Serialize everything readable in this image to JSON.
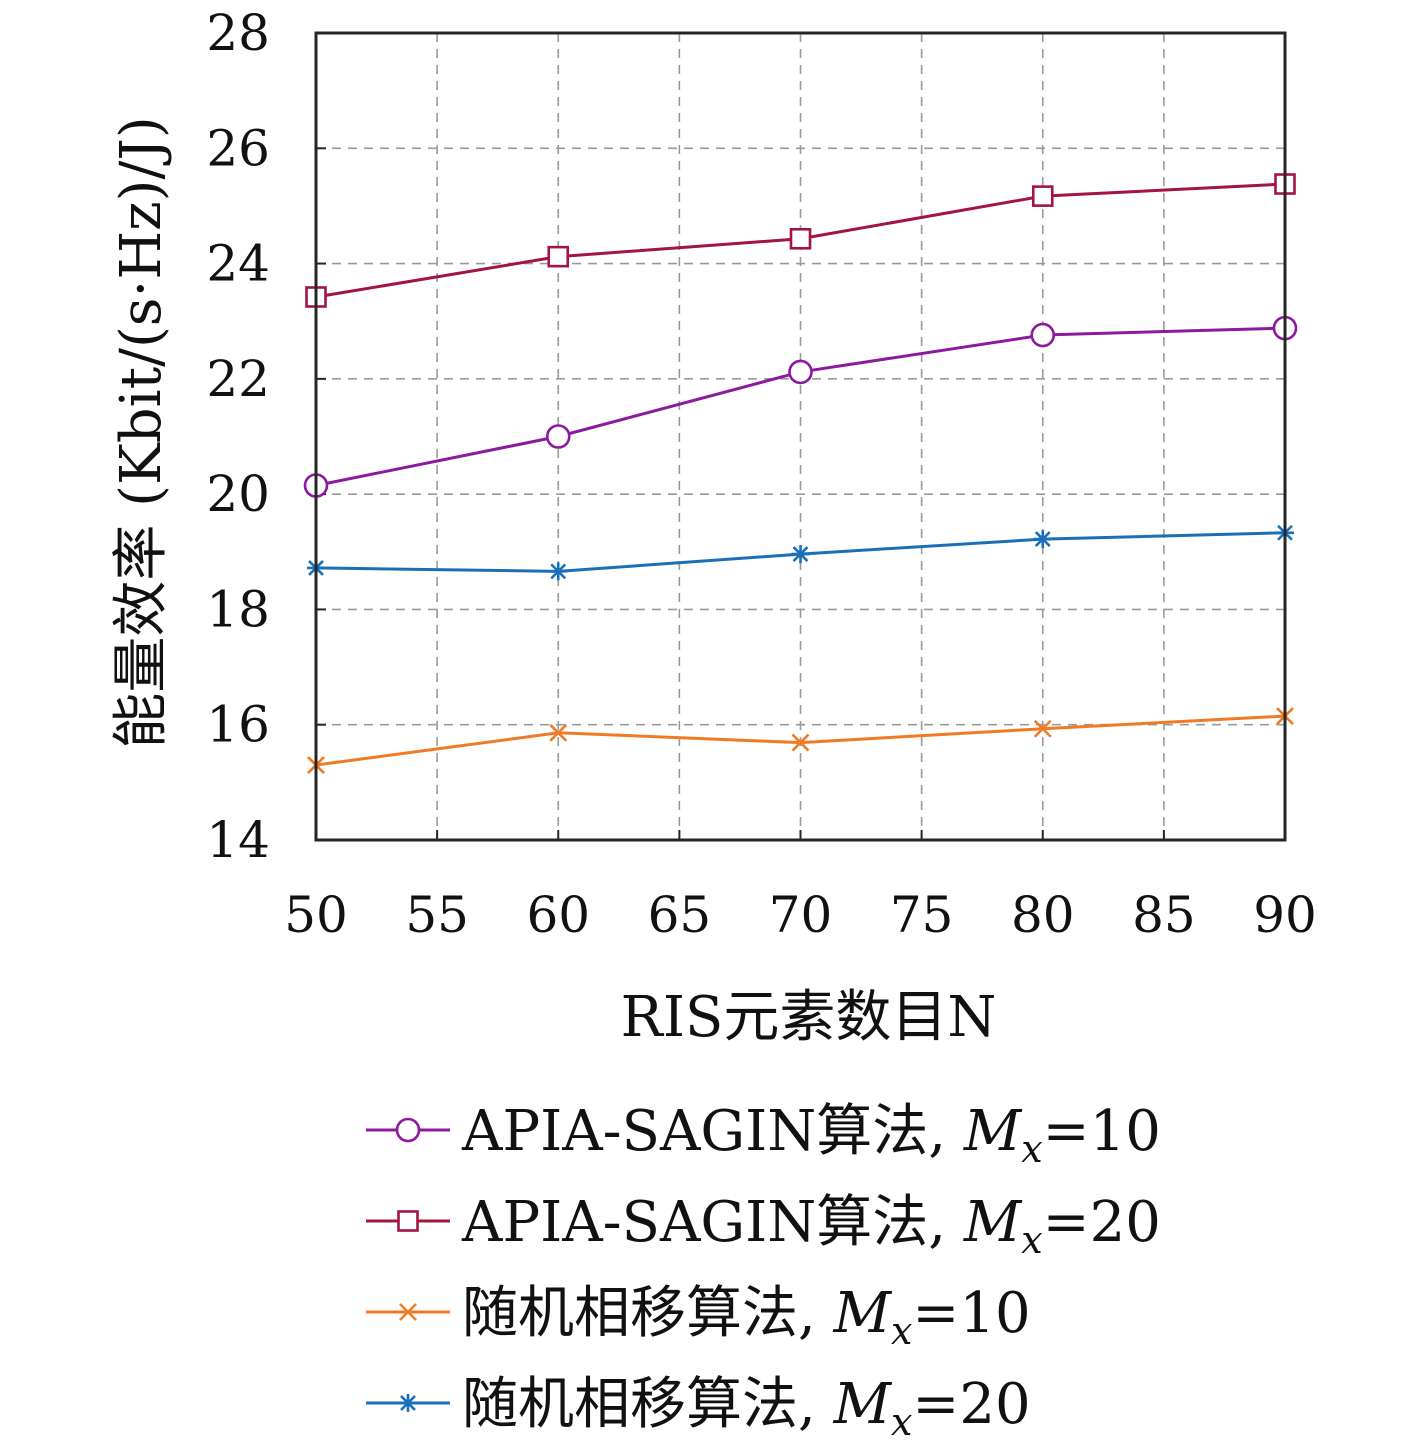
{
  "chart_data": {
    "type": "line",
    "title": "",
    "xlabel": "RIS元素数目N",
    "ylabel": "能量效率 (Kbit/(s·Hz)/J)",
    "x": [
      50,
      60,
      70,
      80,
      90
    ],
    "xlim": [
      50,
      90
    ],
    "ylim": [
      14,
      28
    ],
    "xticks": [
      50,
      55,
      60,
      65,
      70,
      75,
      80,
      85,
      90
    ],
    "yticks": [
      14,
      16,
      18,
      20,
      22,
      24,
      26,
      28
    ],
    "grid": true,
    "legend_position": "bottom (below plot)",
    "series": [
      {
        "name": "APIA-SAGIN算法, Mx=10",
        "label_text": "APIA-SAGIN算法, ",
        "label_sub": "x",
        "label_value": "=10",
        "marker": "circle",
        "color": "#8b1a9e",
        "values": [
          20.15,
          21.0,
          22.12,
          22.76,
          22.88
        ]
      },
      {
        "name": "APIA-SAGIN算法, Mx=20",
        "label_text": "APIA-SAGIN算法, ",
        "label_sub": "x",
        "label_value": "=20",
        "marker": "square",
        "color": "#a3143f",
        "values": [
          23.42,
          24.12,
          24.43,
          25.17,
          25.38
        ]
      },
      {
        "name": "随机相移算法, Mx=10",
        "label_text": "随机相移算法, ",
        "label_sub": "x",
        "label_value": "=10",
        "marker": "x",
        "color": "#f07a25",
        "values": [
          15.3,
          15.86,
          15.69,
          15.93,
          16.15
        ]
      },
      {
        "name": "随机相移算法, Mx=20",
        "label_text": "随机相移算法, ",
        "label_sub": "x",
        "label_value": "=20",
        "marker": "asterisk",
        "color": "#1a70b8",
        "values": [
          18.72,
          18.66,
          18.96,
          19.22,
          19.33
        ]
      }
    ]
  }
}
